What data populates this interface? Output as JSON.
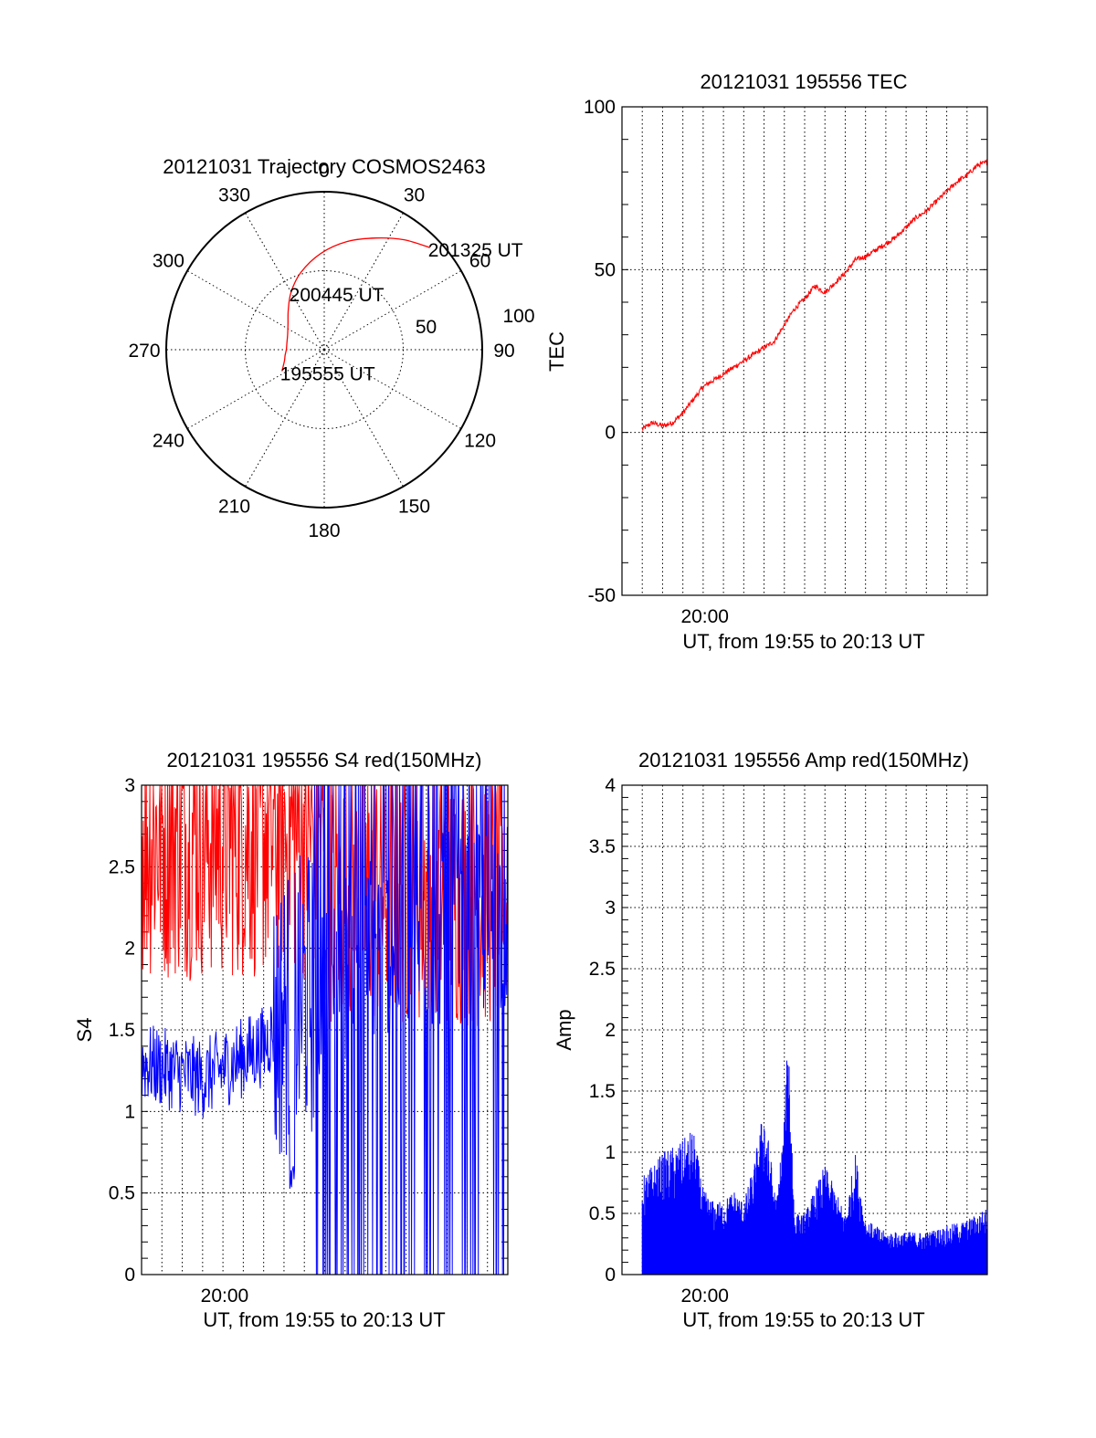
{
  "colors": {
    "red": "#ff0000",
    "blue": "#0000ff",
    "axis": "#000000"
  },
  "chart_data": [
    {
      "type": "polar",
      "title": "20121031 Trajectory COSMOS2463",
      "angle_labels": [
        "0",
        "30",
        "60",
        "90",
        "120",
        "150",
        "180",
        "210",
        "240",
        "270",
        "300",
        "330"
      ],
      "radius_labels": [
        "50",
        "100"
      ],
      "rlim": [
        0,
        100
      ],
      "grid": true,
      "series": [
        {
          "color": "red",
          "points_az_el": [
            [
              243,
              70
            ],
            [
              248,
              72
            ],
            [
              255,
              74
            ],
            [
              262,
              75
            ],
            [
              270,
              76
            ],
            [
              280,
              76
            ],
            [
              292,
              75
            ],
            [
              305,
              72
            ],
            [
              318,
              66
            ],
            [
              330,
              58
            ],
            [
              343,
              49
            ],
            [
              358,
              39
            ],
            [
              12,
              30
            ],
            [
              25,
              22
            ],
            [
              36,
              14
            ],
            [
              46,
              7
            ]
          ]
        }
      ],
      "annotations": [
        {
          "text": "195555 UT",
          "az": 243,
          "el": 70
        },
        {
          "text": "200445 UT",
          "az": 330,
          "el": 58
        },
        {
          "text": "201325 UT",
          "az": 46,
          "el": 7
        }
      ]
    },
    {
      "type": "line",
      "title": "20121031 195556 TEC",
      "xlabel": "UT, from 19:55 to 20:13 UT",
      "ylabel": "TEC",
      "xlim": [
        0,
        18
      ],
      "ylim": [
        -50,
        100
      ],
      "x_ticks": [
        {
          "x": 4.083,
          "label": "20:00"
        }
      ],
      "y_ticks": [
        "-50",
        "0",
        "50",
        "100"
      ],
      "grid": true,
      "series": [
        {
          "color": "red",
          "x": [
            1,
            1.5,
            2,
            2.5,
            3,
            3.5,
            4,
            4.5,
            5,
            5.5,
            6,
            6.5,
            7,
            7.5,
            8,
            8.5,
            9,
            9.5,
            10,
            10.5,
            11,
            11.5,
            12,
            12.5,
            13,
            13.5,
            14,
            14.5,
            15,
            15.5,
            16,
            16.5,
            17,
            17.5,
            18
          ],
          "y": [
            1,
            3,
            2,
            3,
            6,
            10,
            14,
            16,
            18,
            20,
            22,
            24,
            26,
            28,
            33,
            38,
            41,
            45,
            43,
            46,
            49,
            53,
            54,
            56,
            58,
            60,
            63,
            66,
            68,
            71,
            74,
            77,
            79,
            82,
            83
          ]
        }
      ]
    },
    {
      "type": "line",
      "title": "20121031 195556 S4 red(150MHz)",
      "xlabel": "UT, from 19:55 to 20:13 UT",
      "ylabel": "S4",
      "xlim": [
        0,
        18
      ],
      "ylim": [
        0,
        3
      ],
      "x_ticks": [
        {
          "x": 4.083,
          "label": "20:00"
        }
      ],
      "y_ticks": [
        "0",
        "0.5",
        "1",
        "1.5",
        "2",
        "2.5",
        "3"
      ],
      "grid": true,
      "series": [
        {
          "color": "red",
          "x_range": [
            0,
            18
          ],
          "samples": 620,
          "band": [
            1.6,
            3.0
          ]
        },
        {
          "color": "blue",
          "x_range": [
            0,
            18
          ],
          "samples": 620,
          "level_profile": [
            [
              0,
              1.3
            ],
            [
              3,
              1.2
            ],
            [
              6,
              1.4
            ],
            [
              7,
              1.6
            ],
            [
              9,
              1.8
            ],
            [
              11,
              2.0
            ],
            [
              18,
              2.2
            ]
          ],
          "dip": {
            "x": 7.4,
            "value": 0.5
          }
        }
      ]
    },
    {
      "type": "area",
      "title": "20121031 195556 Amp red(150MHz)",
      "xlabel": "UT, from 19:55 to 20:13 UT",
      "ylabel": "Amp",
      "xlim": [
        0,
        18
      ],
      "ylim": [
        0,
        4
      ],
      "x_ticks": [
        {
          "x": 4.083,
          "label": "20:00"
        }
      ],
      "y_ticks": [
        "0",
        "0.5",
        "1",
        "1.5",
        "2",
        "2.5",
        "3",
        "3.5",
        "4"
      ],
      "grid": true,
      "series": [
        {
          "color": "blue",
          "envelope_x": [
            1,
            2,
            3,
            3.5,
            4,
            4.5,
            5,
            5.5,
            6,
            6.5,
            7,
            7.3,
            7.6,
            8,
            8.2,
            8.5,
            9,
            10,
            11,
            11.5,
            12,
            12.5,
            13,
            14,
            15,
            16,
            17,
            18
          ],
          "envelope_y": [
            0.8,
            1.0,
            1.1,
            1.2,
            0.7,
            0.6,
            0.6,
            0.7,
            0.6,
            0.9,
            1.4,
            1.0,
            0.6,
            1.3,
            2.1,
            0.5,
            0.5,
            0.9,
            0.5,
            1.0,
            0.45,
            0.4,
            0.35,
            0.35,
            0.35,
            0.4,
            0.45,
            0.55
          ]
        }
      ]
    }
  ]
}
